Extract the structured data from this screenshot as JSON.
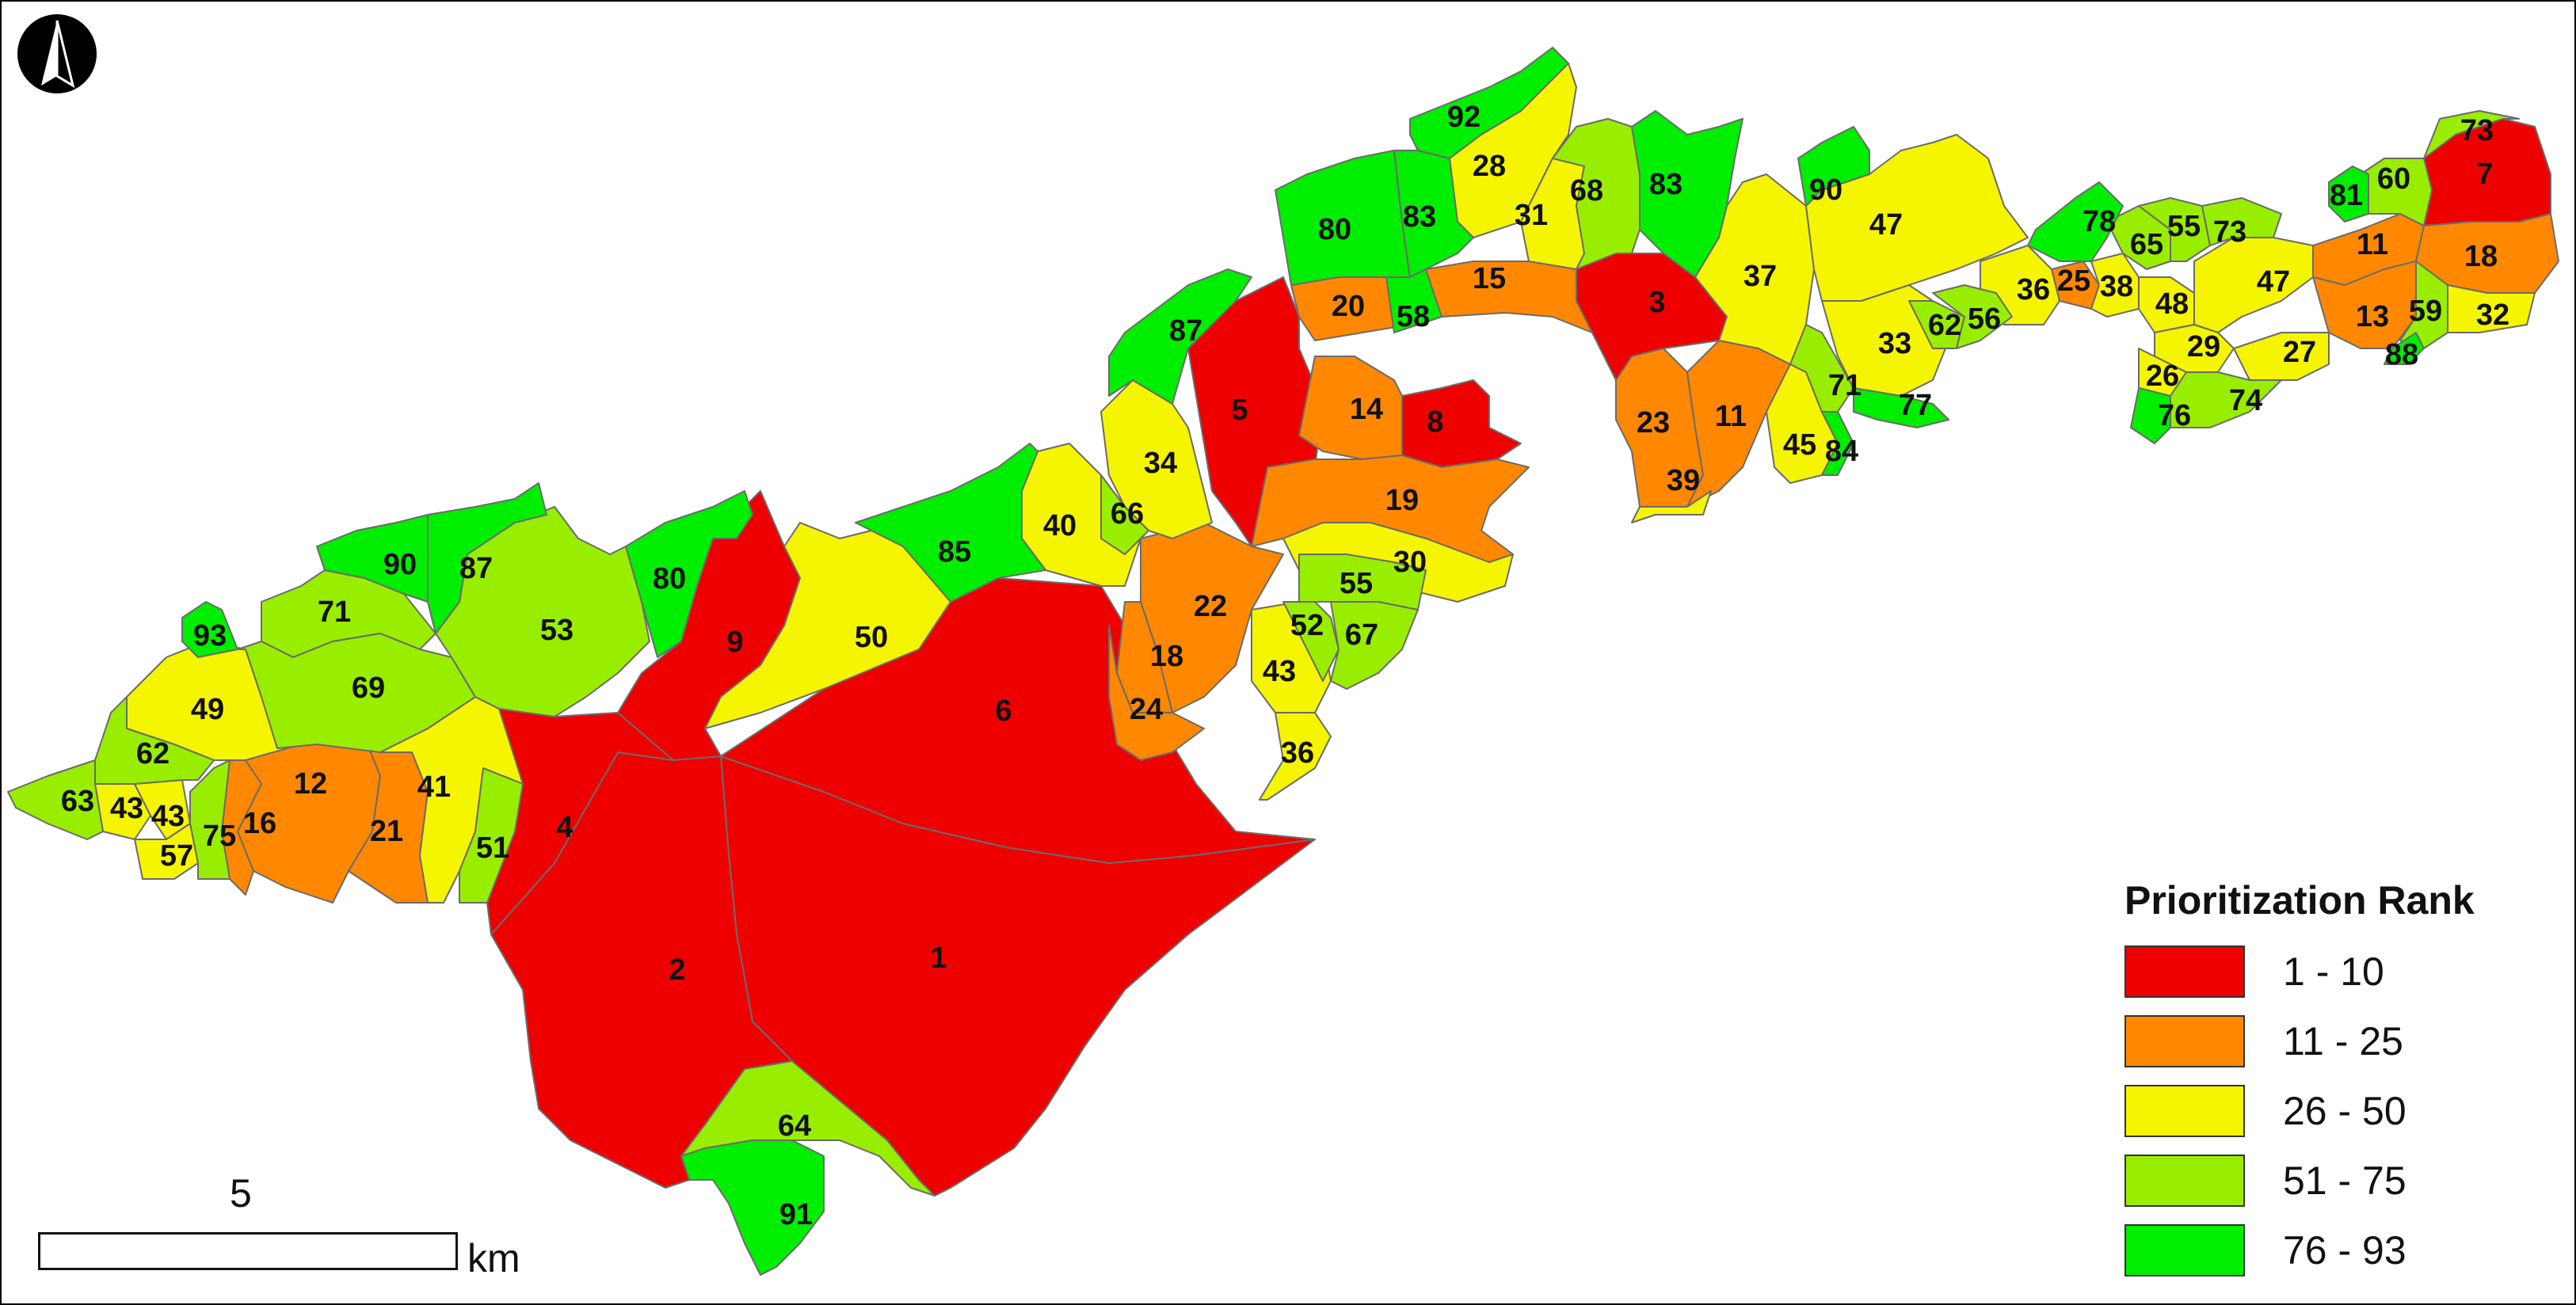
{
  "legend": {
    "title": "Prioritization Rank",
    "classes": [
      {
        "label": "1 - 10",
        "color": "#ee0000"
      },
      {
        "label": "11 - 25",
        "color": "#ff8800"
      },
      {
        "label": "26 - 50",
        "color": "#f5f500"
      },
      {
        "label": "51 - 75",
        "color": "#99ee00"
      },
      {
        "label": "76 - 93",
        "color": "#00ee00"
      }
    ]
  },
  "scale": {
    "value": "5",
    "unit": "km"
  },
  "north_arrow": {
    "icon": "north-arrow-icon"
  },
  "ranks": {
    "r1": "1",
    "r2": "2",
    "r3": "3",
    "r4": "4",
    "r5": "5",
    "r6": "6",
    "r7": "7",
    "r8": "8",
    "r9": "9",
    "r11a": "11",
    "r11b": "11",
    "r12": "12",
    "r13": "13",
    "r14": "14",
    "r15": "15",
    "r16": "16",
    "r18a": "18",
    "r18b": "18",
    "r19": "19",
    "r20": "20",
    "r21": "21",
    "r22": "22",
    "r23": "23",
    "r24": "24",
    "r25": "25",
    "r26": "26",
    "r27": "27",
    "r28": "28",
    "r29": "29",
    "r30": "30",
    "r31": "31",
    "r32": "32",
    "r33": "33",
    "r34": "34",
    "r36a": "36",
    "r36b": "36",
    "r37": "37",
    "r38": "38",
    "r39": "39",
    "r40": "40",
    "r41": "41",
    "r43a": "43",
    "r43b": "43",
    "r43c": "43",
    "r45": "45",
    "r47a": "47",
    "r47b": "47",
    "r48": "48",
    "r49": "49",
    "r50": "50",
    "r51": "51",
    "r52": "52",
    "r53": "53",
    "r55a": "55",
    "r55b": "55",
    "r56": "56",
    "r57": "57",
    "r58": "58",
    "r59": "59",
    "r60": "60",
    "r62a": "62",
    "r62b": "62",
    "r63": "63",
    "r64": "64",
    "r65": "65",
    "r66": "66",
    "r67": "67",
    "r68": "68",
    "r69": "69",
    "r71a": "71",
    "r71b": "71",
    "r73a": "73",
    "r73b": "73",
    "r74": "74",
    "r75": "75",
    "r76": "76",
    "r77": "77",
    "r78": "78",
    "r80a": "80",
    "r80b": "80",
    "r81": "81",
    "r83a": "83",
    "r83b": "83",
    "r84": "84",
    "r85": "85",
    "r87a": "87",
    "r87b": "87",
    "r88": "88",
    "r90a": "90",
    "r90b": "90",
    "r91": "91",
    "r92": "92",
    "r93": "93"
  }
}
